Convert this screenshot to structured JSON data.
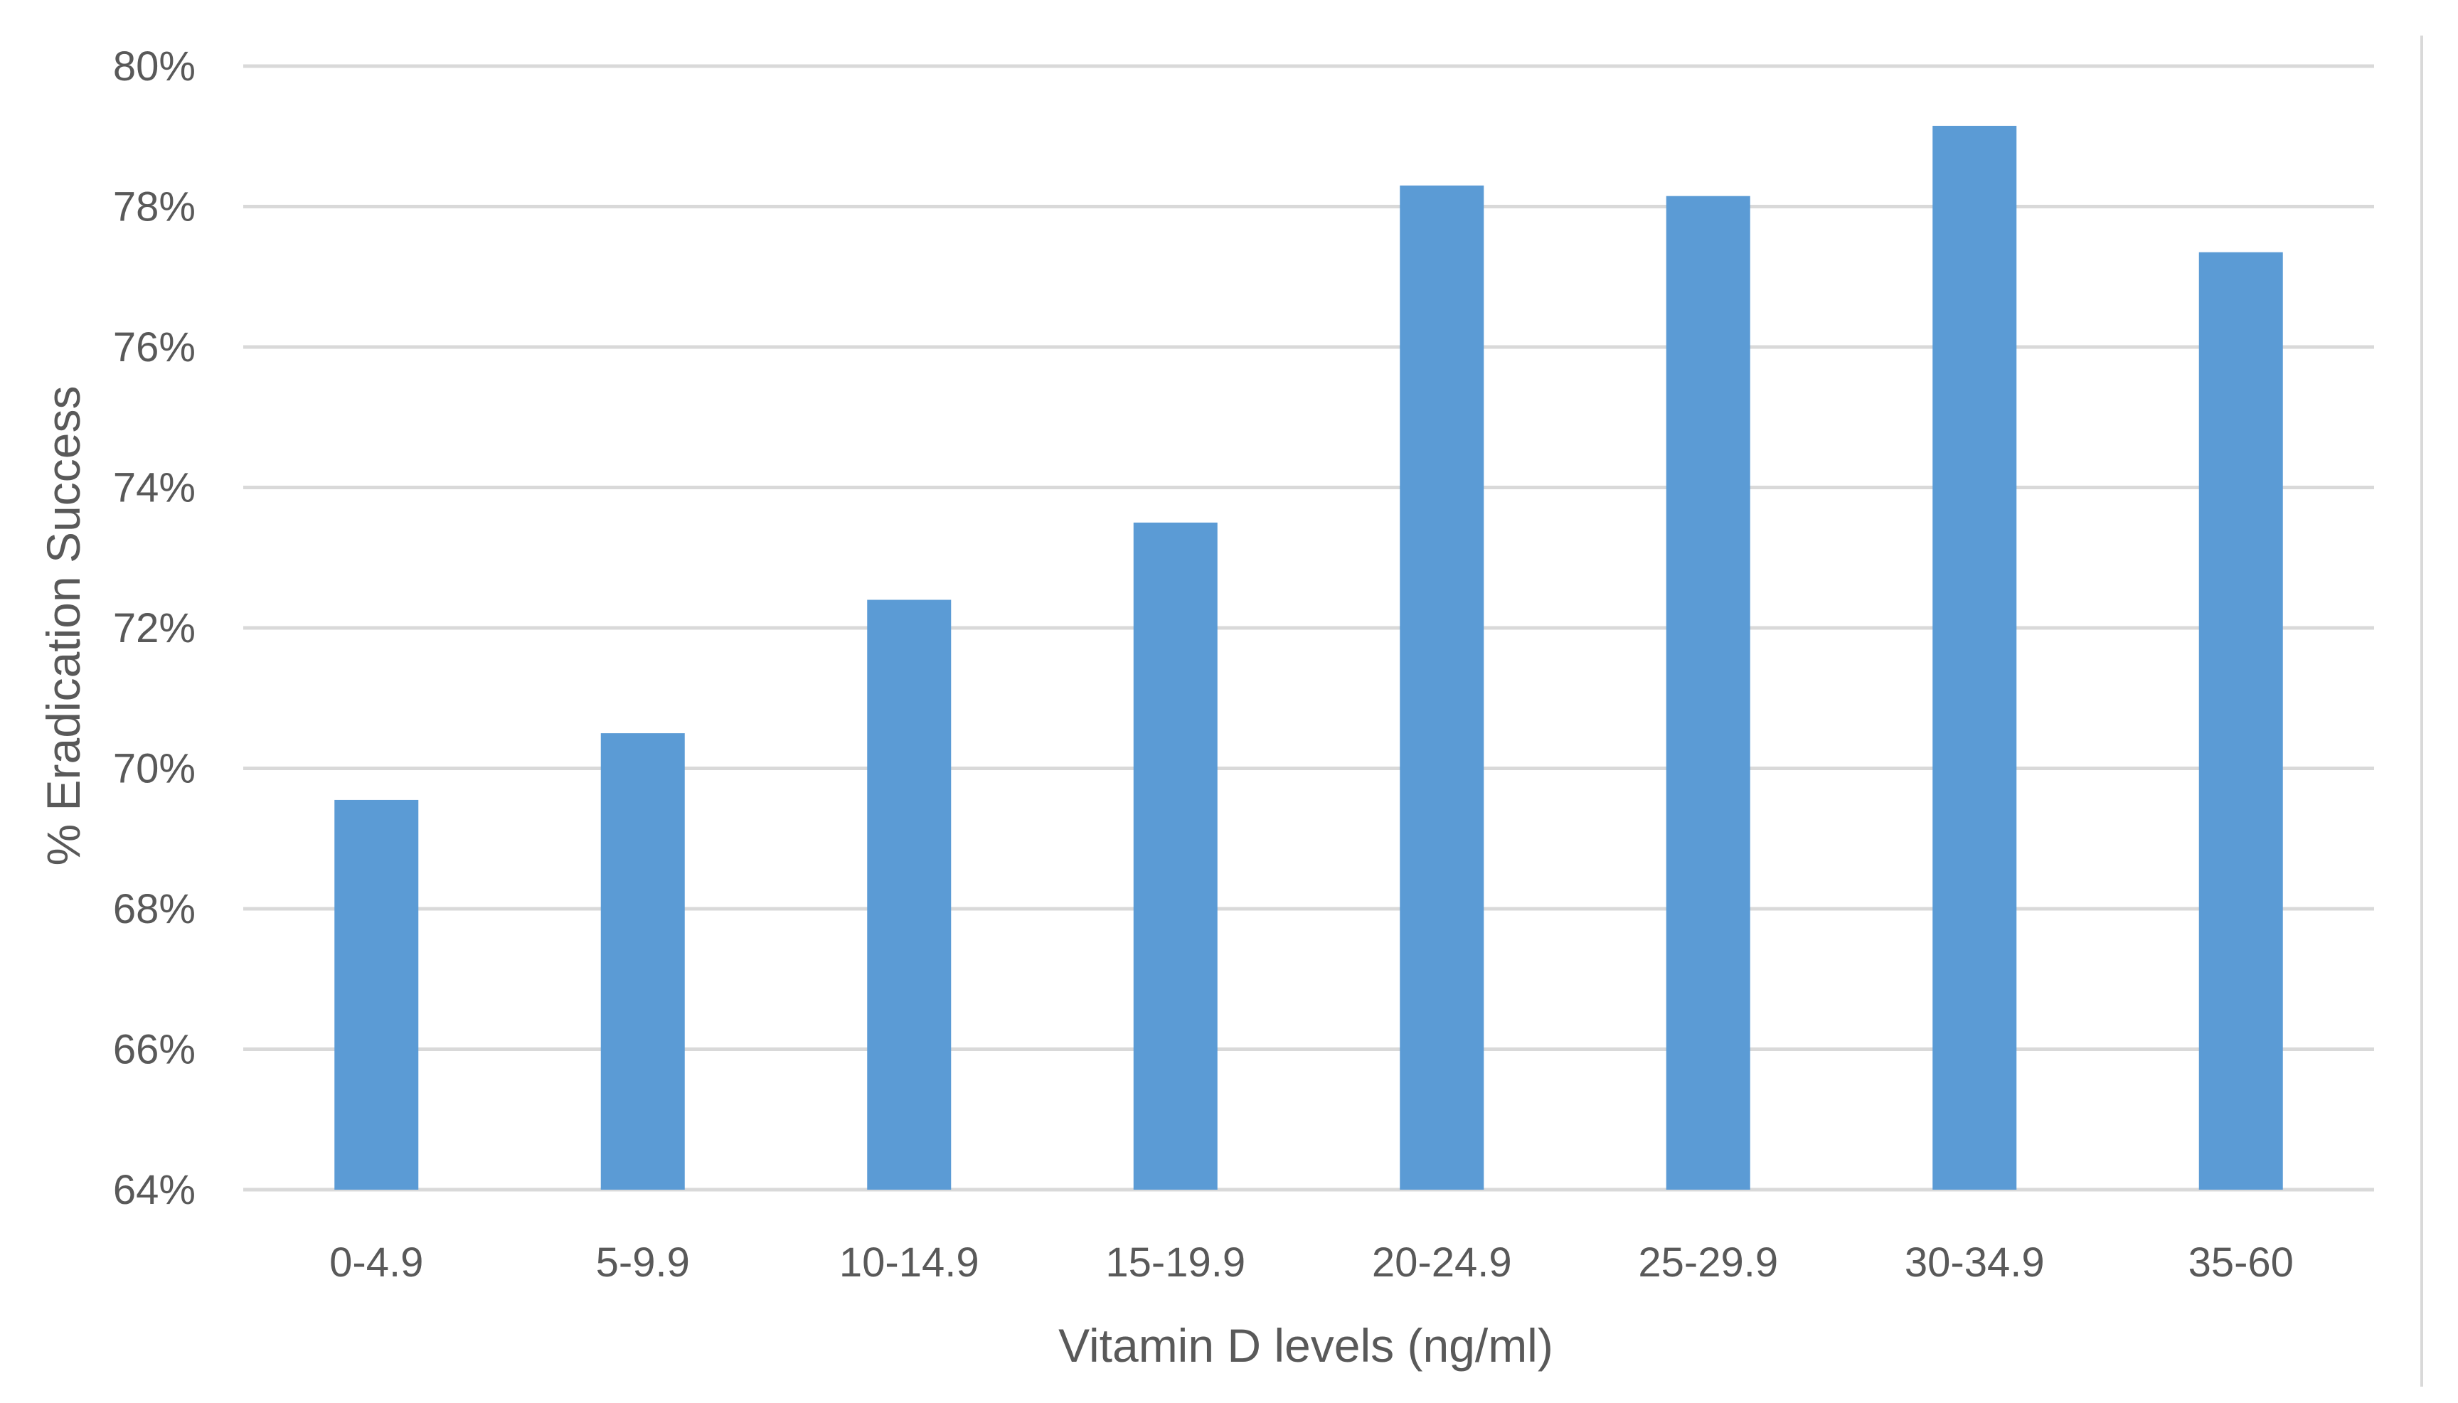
{
  "chart_data": {
    "type": "bar",
    "categories": [
      "0-4.9",
      "5-9.9",
      "10-14.9",
      "15-19.9",
      "20-24.9",
      "25-29.9",
      "30-34.9",
      "35-60"
    ],
    "series": [
      {
        "values": [
          69.55,
          70.5,
          72.4,
          73.5,
          78.3,
          78.15,
          79.15,
          77.35
        ]
      }
    ],
    "title": "",
    "xlabel": "Vitamin D levels (ng/ml)",
    "ylabel": "% Eradication Success",
    "ylim": [
      64,
      80
    ],
    "yticks": [
      64,
      66,
      68,
      70,
      72,
      74,
      76,
      78,
      80
    ],
    "ytick_labels": [
      "64%",
      "66%",
      "68%",
      "70%",
      "72%",
      "74%",
      "76%",
      "78%",
      "80%"
    ],
    "grid": true,
    "legend": "none",
    "colors": {
      "bar": "#5B9BD5",
      "grid": "#D9D9D9",
      "text": "#595959",
      "border": "#D9D9D9"
    }
  }
}
